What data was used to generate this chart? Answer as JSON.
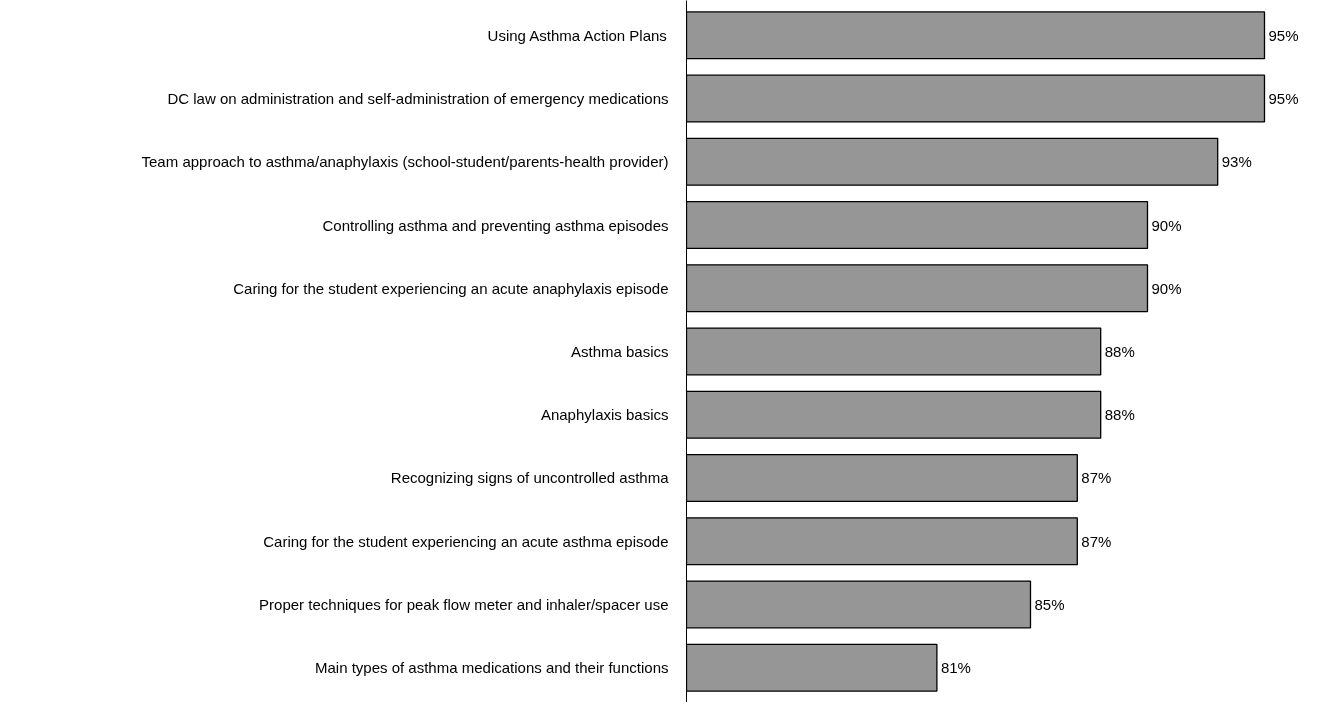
{
  "chart_data": {
    "type": "bar",
    "orientation": "horizontal",
    "categories": [
      "Using Asthma Action Plans",
      "DC law on administration and self-administration of emergency medications",
      "Team approach to asthma/anaphylaxis (school-student/parents-health provider)",
      "Controlling asthma and preventing asthma episodes",
      "Caring for the student experiencing an acute anaphylaxis episode",
      "Asthma basics",
      "Anaphylaxis basics",
      "Recognizing signs of uncontrolled asthma",
      "Caring for the student experiencing an acute asthma episode",
      "Proper techniques for peak flow meter and inhaler/spacer use",
      "Main types of asthma medications and their functions"
    ],
    "values": [
      95,
      95,
      93,
      90,
      90,
      88,
      88,
      87,
      87,
      85,
      81
    ],
    "value_labels": [
      "95%",
      "95%",
      "93%",
      "90%",
      "90%",
      "88%",
      "88%",
      "87%",
      "87%",
      "85%",
      "81%"
    ],
    "color": "#969696",
    "xlim": [
      70.3,
      95
    ],
    "grid": false,
    "tick_labels": "y"
  }
}
